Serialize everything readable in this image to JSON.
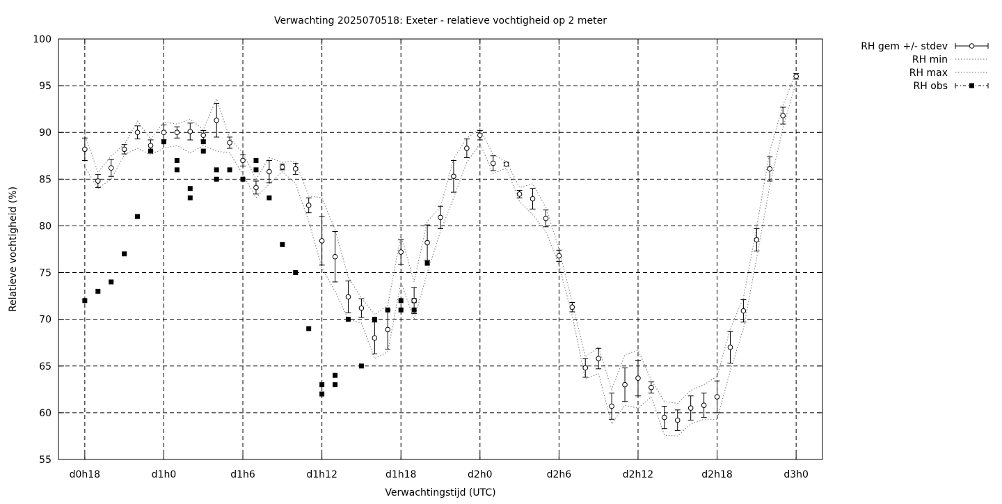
{
  "chart_data": {
    "type": "line",
    "title": "Verwachting 2025070518: Exeter - relatieve vochtigheid op 2 meter",
    "xlabel": "Verwachtingstijd (UTC)",
    "ylabel": "Relatieve vochtigheid (%)",
    "xlim": [
      -2,
      56
    ],
    "ylim": [
      55,
      100
    ],
    "x_ticks": [
      {
        "x": 0,
        "label": "d0h18"
      },
      {
        "x": 6,
        "label": "d1h0"
      },
      {
        "x": 12,
        "label": "d1h6"
      },
      {
        "x": 18,
        "label": "d1h12"
      },
      {
        "x": 24,
        "label": "d1h18"
      },
      {
        "x": 30,
        "label": "d2h0"
      },
      {
        "x": 36,
        "label": "d2h6"
      },
      {
        "x": 42,
        "label": "d2h12"
      },
      {
        "x": 48,
        "label": "d2h18"
      },
      {
        "x": 54,
        "label": "d3h0"
      }
    ],
    "y_ticks": [
      55,
      60,
      65,
      70,
      75,
      80,
      85,
      90,
      95,
      100
    ],
    "grid": true,
    "legend_position": "outside-top-right",
    "legend": [
      {
        "label": "RH gem +/- stdev"
      },
      {
        "label": "RH min"
      },
      {
        "label": "RH max"
      },
      {
        "label": "RH obs"
      }
    ],
    "series": [
      {
        "name": "RH gem +/- stdev",
        "style": "errorbars-open-circles",
        "x": [
          0,
          1,
          2,
          3,
          4,
          5,
          6,
          7,
          8,
          9,
          10,
          11,
          12,
          13,
          14,
          15,
          16,
          17,
          18,
          19,
          20,
          21,
          22,
          23,
          24,
          25,
          26,
          27,
          28,
          29,
          30,
          31,
          32,
          33,
          34,
          35,
          36,
          37,
          38,
          39,
          40,
          41,
          42,
          43,
          44,
          45,
          46,
          47,
          48,
          49,
          50,
          51,
          52,
          53,
          54
        ],
        "values": [
          88.2,
          84.8,
          86.2,
          88.2,
          90.0,
          88.6,
          90.0,
          90.0,
          90.1,
          89.7,
          91.3,
          88.9,
          87.0,
          84.1,
          85.8,
          86.3,
          86.1,
          82.2,
          78.4,
          76.7,
          72.4,
          71.2,
          68.0,
          68.9,
          77.2,
          72.0,
          78.2,
          80.9,
          85.3,
          88.3,
          89.7,
          86.7,
          86.6,
          83.4,
          82.9,
          80.8,
          76.8,
          71.3,
          64.8,
          65.8,
          60.7,
          63.0,
          63.7,
          62.7,
          59.5,
          59.2,
          60.5,
          60.8,
          61.7,
          67.0,
          70.9,
          78.5,
          86.1,
          91.8,
          96.0
        ],
        "stdev": [
          1.2,
          0.7,
          0.9,
          0.5,
          0.7,
          0.6,
          0.8,
          0.6,
          0.9,
          0.5,
          1.8,
          0.6,
          0.6,
          0.7,
          1.2,
          0.3,
          0.6,
          0.8,
          2.6,
          2.7,
          1.7,
          1.0,
          1.7,
          2.1,
          1.3,
          1.4,
          1.9,
          1.2,
          1.7,
          1.0,
          0.5,
          0.8,
          0.2,
          0.4,
          1.1,
          0.9,
          0.6,
          0.5,
          1.0,
          1.1,
          1.4,
          1.8,
          1.9,
          0.6,
          1.2,
          1.1,
          1.3,
          1.3,
          1.7,
          1.7,
          1.2,
          1.2,
          1.3,
          0.9,
          0.3
        ]
      },
      {
        "name": "RH min",
        "style": "dotted-line",
        "x": [
          0,
          1,
          2,
          3,
          4,
          5,
          6,
          7,
          8,
          9,
          10,
          11,
          12,
          13,
          14,
          15,
          16,
          17,
          18,
          19,
          20,
          21,
          22,
          23,
          24,
          25,
          26,
          27,
          28,
          29,
          30,
          31,
          32,
          33,
          34,
          35,
          36,
          37,
          38,
          39,
          40,
          41,
          42,
          43,
          44,
          45,
          46,
          47,
          48,
          49,
          50,
          51,
          52,
          53,
          54
        ],
        "values": [
          86.3,
          84.0,
          85.0,
          87.6,
          88.3,
          87.6,
          88.3,
          88.6,
          87.8,
          88.6,
          88.0,
          87.8,
          85.5,
          83.0,
          84.5,
          85.8,
          84.5,
          80.5,
          75.5,
          73.0,
          70.0,
          69.6,
          65.8,
          66.5,
          74.0,
          70.0,
          75.0,
          79.4,
          83.0,
          86.8,
          88.8,
          85.6,
          86.2,
          82.6,
          81.2,
          79.4,
          75.8,
          70.4,
          63.6,
          64.2,
          58.8,
          60.8,
          60.5,
          61.7,
          57.6,
          57.5,
          58.8,
          59.3,
          59.3,
          64.5,
          69.0,
          76.5,
          84.3,
          90.5,
          95.4
        ]
      },
      {
        "name": "RH max",
        "style": "dotted-line",
        "x": [
          0,
          1,
          2,
          3,
          4,
          5,
          6,
          7,
          8,
          9,
          10,
          11,
          12,
          13,
          14,
          15,
          16,
          17,
          18,
          19,
          20,
          21,
          22,
          23,
          24,
          25,
          26,
          27,
          28,
          29,
          30,
          31,
          32,
          33,
          34,
          35,
          36,
          37,
          38,
          39,
          40,
          41,
          42,
          43,
          44,
          45,
          46,
          47,
          48,
          49,
          50,
          51,
          52,
          53,
          54
        ],
        "values": [
          89.8,
          85.7,
          87.5,
          88.7,
          91.2,
          89.3,
          91.1,
          90.9,
          91.4,
          90.3,
          93.6,
          89.4,
          87.8,
          85.0,
          87.3,
          86.8,
          86.9,
          83.2,
          83.0,
          79.6,
          74.5,
          72.3,
          70.5,
          71.5,
          79.0,
          74.0,
          80.5,
          82.0,
          87.2,
          89.4,
          90.4,
          87.6,
          86.9,
          84.1,
          84.5,
          82.0,
          77.5,
          71.8,
          66.0,
          67.0,
          62.5,
          66.2,
          66.7,
          63.5,
          61.2,
          61.0,
          62.4,
          63.0,
          63.9,
          69.0,
          72.3,
          79.8,
          88.0,
          92.9,
          96.5
        ]
      },
      {
        "name": "RH obs",
        "style": "filled-squares",
        "points": [
          {
            "x": 0,
            "y": 72
          },
          {
            "x": 1,
            "y": 73
          },
          {
            "x": 2,
            "y": 74
          },
          {
            "x": 3,
            "y": 77
          },
          {
            "x": 4,
            "y": 81
          },
          {
            "x": 5,
            "y": 88
          },
          {
            "x": 6,
            "y": 89
          },
          {
            "x": 7,
            "y": 87
          },
          {
            "x": 7,
            "y": 86
          },
          {
            "x": 8,
            "y": 84
          },
          {
            "x": 8,
            "y": 83
          },
          {
            "x": 9,
            "y": 89
          },
          {
            "x": 9,
            "y": 88
          },
          {
            "x": 10,
            "y": 86
          },
          {
            "x": 10,
            "y": 85
          },
          {
            "x": 11,
            "y": 86
          },
          {
            "x": 12,
            "y": 85
          },
          {
            "x": 13,
            "y": 87
          },
          {
            "x": 13,
            "y": 86
          },
          {
            "x": 14,
            "y": 83
          },
          {
            "x": 15,
            "y": 78
          },
          {
            "x": 16,
            "y": 75
          },
          {
            "x": 17,
            "y": 69
          },
          {
            "x": 18,
            "y": 63
          },
          {
            "x": 18,
            "y": 62
          },
          {
            "x": 19,
            "y": 64
          },
          {
            "x": 19,
            "y": 63
          },
          {
            "x": 20,
            "y": 70
          },
          {
            "x": 21,
            "y": 65
          },
          {
            "x": 22,
            "y": 70
          },
          {
            "x": 23,
            "y": 71
          },
          {
            "x": 24,
            "y": 72
          },
          {
            "x": 24,
            "y": 71
          },
          {
            "x": 25,
            "y": 72
          },
          {
            "x": 25,
            "y": 71
          },
          {
            "x": 26,
            "y": 76
          }
        ]
      }
    ]
  }
}
